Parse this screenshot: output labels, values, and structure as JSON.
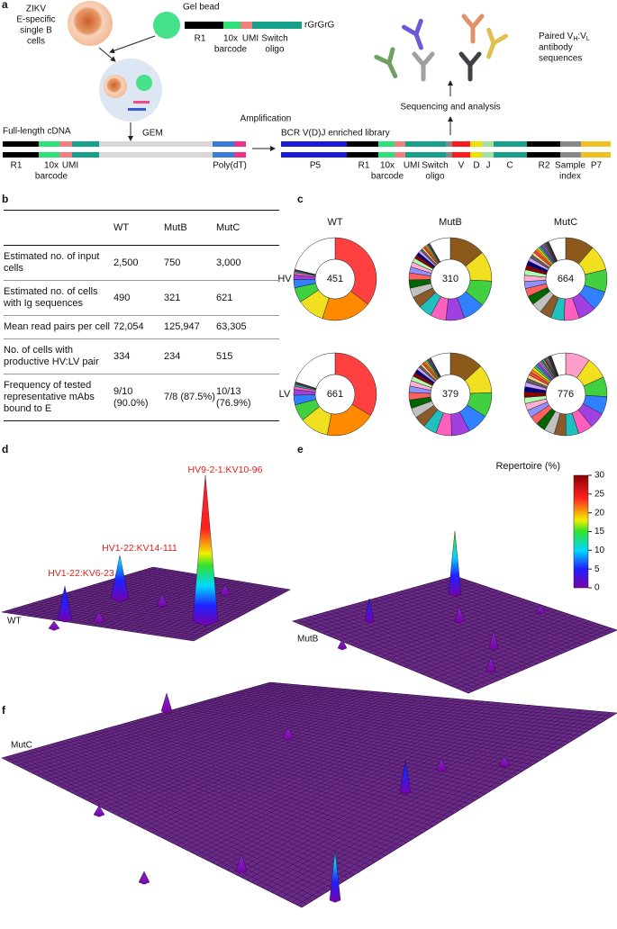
{
  "panel_letters": [
    "a",
    "b",
    "c",
    "d",
    "e",
    "f"
  ],
  "panel_a": {
    "cell_label": [
      "ZIKV",
      "E-specific",
      "single B",
      "cells"
    ],
    "gel_bead": "Gel bead",
    "bead_end": "rGrGrG",
    "bead_labels": [
      "R1",
      "10x",
      "barcode",
      "UMI",
      "Switch",
      "oligo"
    ],
    "gem": "GEM",
    "cdna_title": "Full-length cDNA",
    "cdna_labels": [
      "R1",
      "10x",
      "barcode",
      "UMI",
      "Poly(dT)"
    ],
    "amplification": "Amplification",
    "library_title": "BCR V(D)J enriched library",
    "library_labels": [
      "P5",
      "R1",
      "10x",
      "barcode",
      "UMI",
      "Switch",
      "oligo",
      "V",
      "D",
      "J",
      "C",
      "R2",
      "Sample",
      "index",
      "P7"
    ],
    "sequencing": "Sequencing and analysis",
    "paired": {
      "pre": "Paired V",
      "sub1": "H",
      "mid": ":V",
      "sub2": "L",
      "line2": "antibody",
      "line3": "sequences"
    }
  },
  "table": {
    "header": [
      "WT",
      "MutB",
      "MutC"
    ],
    "rows": [
      [
        "Estimated no. of input cells",
        "2,500",
        "750",
        "3,000"
      ],
      [
        "Estimated no. of cells with Ig sequences",
        "490",
        "321",
        "621"
      ],
      [
        "Mean read pairs per cell",
        "72,054",
        "125,947",
        "63,305"
      ],
      [
        "No. of cells with productive HV:LV pair",
        "334",
        "234",
        "515"
      ],
      [
        "Frequency of tested representative mAbs bound to E",
        "9/10 (90.0%)",
        "7/8 (87.5%)",
        "10/13 (76.9%)"
      ]
    ]
  },
  "panel_c": {
    "columns": [
      "WT",
      "MutB",
      "MutC"
    ],
    "rows": [
      "HV",
      "LV"
    ],
    "counts": [
      [
        451,
        310,
        664
      ],
      [
        661,
        379,
        776
      ]
    ]
  },
  "panel_d": {
    "sample": "WT",
    "peaks": [
      "HV9-2-1:KV10-96",
      "HV1-22:KV14-111",
      "HV1-22:KV6-23"
    ]
  },
  "panel_e": {
    "sample": "MutB"
  },
  "panel_f": {
    "sample": "MutC"
  },
  "colorbar": {
    "label": "Repertoire (%)",
    "lim": [
      0,
      30
    ],
    "ticks": [
      0,
      5,
      10,
      15,
      20,
      25,
      30
    ]
  }
}
